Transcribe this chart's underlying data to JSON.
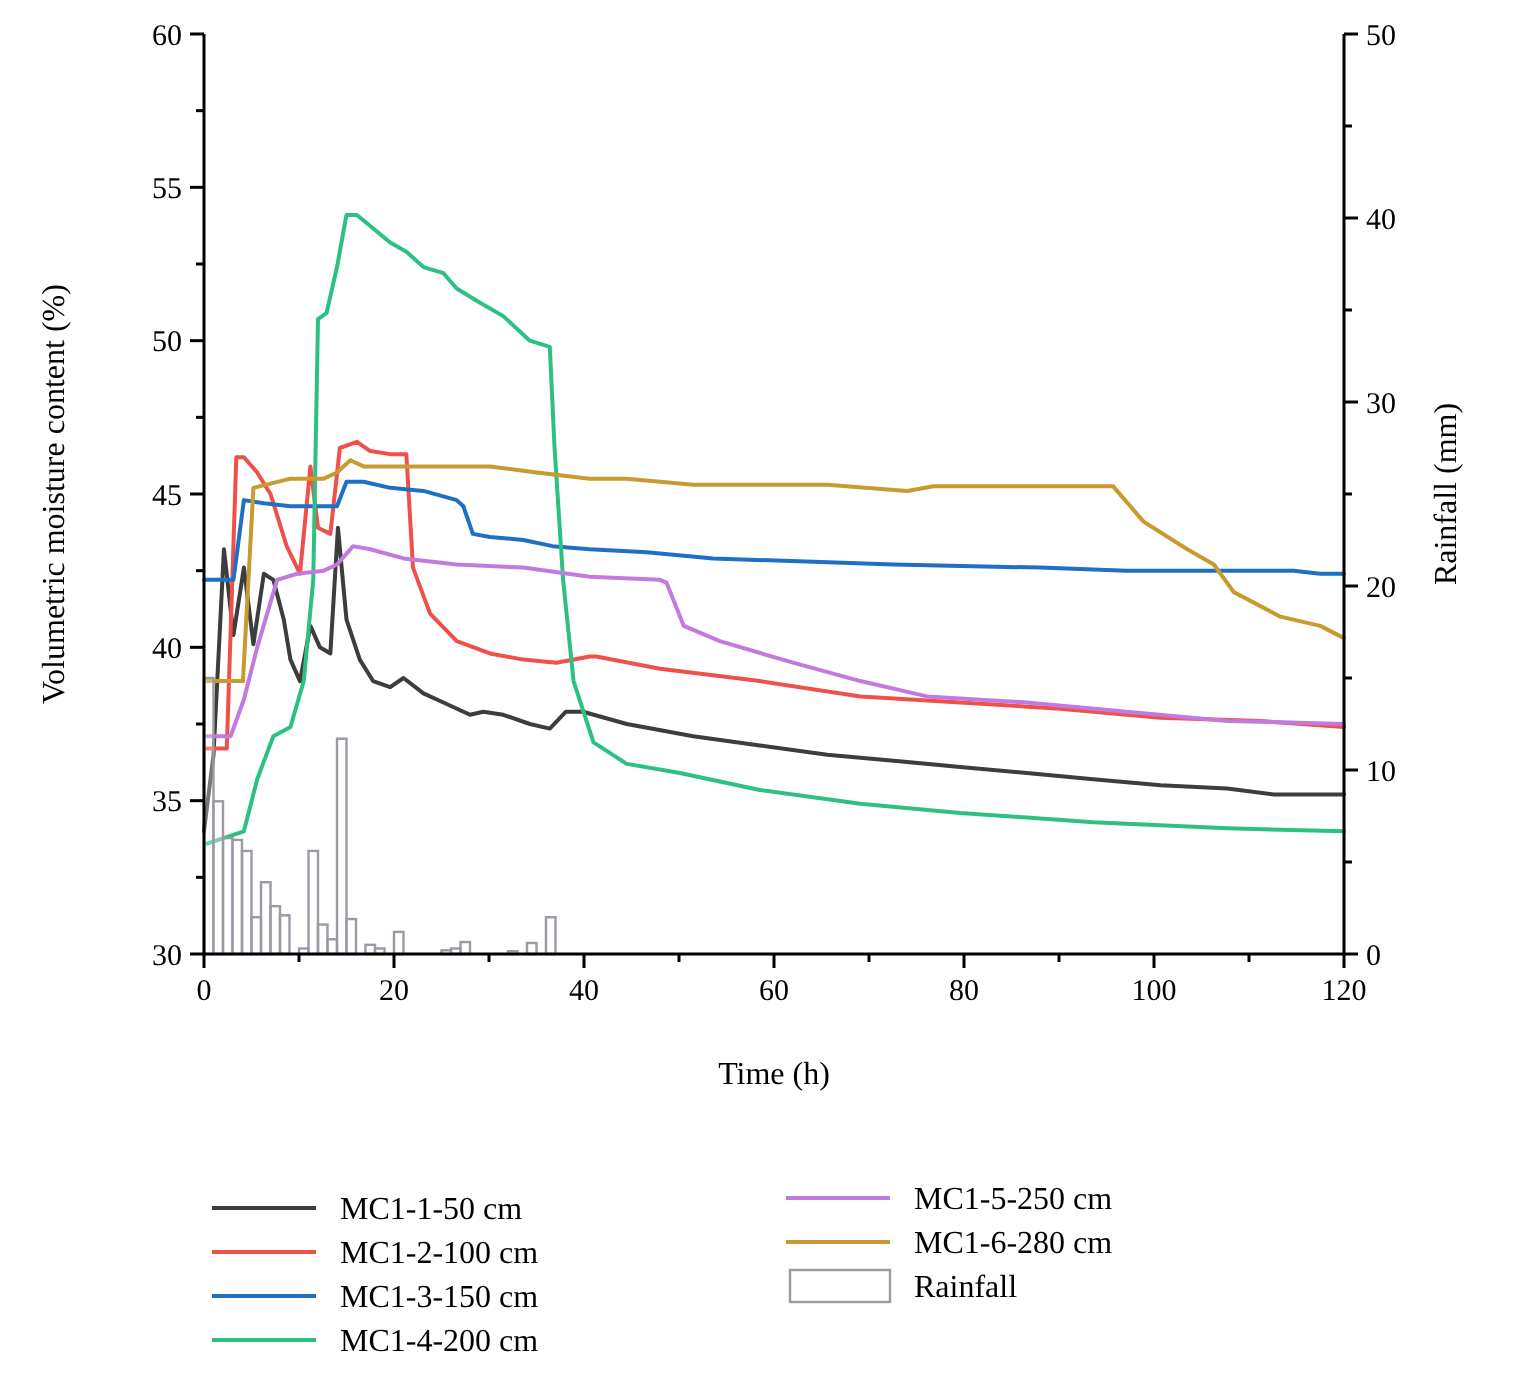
{
  "chart_data": {
    "type": "line",
    "xlabel": "Time (h)",
    "ylabel": "Volumetric moisture content (%)",
    "y2label": "Rainfall (mm)",
    "xlim": [
      0,
      120
    ],
    "xticks": [
      0,
      {
        "value": 10,
        "label": null
      },
      20,
      {
        "value": 30,
        "label": null
      },
      40,
      {
        "value": 50,
        "label": null
      },
      60,
      {
        "value": 70,
        "label": null
      },
      80,
      {
        "value": 90,
        "label": null
      },
      100,
      {
        "value": 110,
        "label": null
      },
      120
    ],
    "ylim": [
      30,
      60
    ],
    "yticks": [
      30,
      {
        "value": 32.5,
        "label": null
      },
      35,
      {
        "value": 37.5,
        "label": null
      },
      40,
      {
        "value": 42.5,
        "label": null
      },
      45,
      {
        "value": 47.5,
        "label": null
      },
      50,
      {
        "value": 52.5,
        "label": null
      },
      55,
      {
        "value": 57.5,
        "label": null
      },
      60
    ],
    "y2lim": [
      0,
      50
    ],
    "y2ticks": [
      0,
      {
        "value": 5,
        "label": null
      },
      10,
      {
        "value": 15,
        "label": null
      },
      20,
      {
        "value": 25,
        "label": null
      },
      30,
      {
        "value": 35,
        "label": null
      },
      40,
      {
        "value": 45,
        "label": null
      },
      50
    ],
    "grid": false,
    "legend": "bottom",
    "marker": "none",
    "line_style": "solid",
    "series": [
      {
        "name": "MC1-1-50 cm",
        "color": "#3d3d3d",
        "x": [
          0,
          1,
          2.1,
          3.1,
          4.2,
          5.2,
          6.3,
          7.3,
          8.4,
          9.1,
          10.1,
          11.2,
          12.2,
          13.3,
          14.1,
          15,
          16.4,
          17.8,
          19.6,
          21,
          23.1,
          25.2,
          28,
          29.4,
          31.5,
          34.3,
          36.4,
          38.1,
          39.9,
          44.5,
          51.5,
          58.5,
          65.6,
          72.6,
          79.6,
          86.6,
          93.6,
          100.7,
          107.7,
          112.6,
          117.5,
          120
        ],
        "values": [
          34,
          36.5,
          43.2,
          40.4,
          42.6,
          40.1,
          42.4,
          42.2,
          40.9,
          39.6,
          38.9,
          40.7,
          40,
          39.8,
          43.9,
          40.9,
          39.6,
          38.9,
          38.7,
          39,
          38.5,
          38.2,
          37.8,
          37.9,
          37.8,
          37.5,
          37.35,
          37.9,
          37.9,
          37.5,
          37.1,
          36.8,
          36.5,
          36.3,
          36.1,
          35.9,
          35.7,
          35.5,
          35.4,
          35.2,
          35.2,
          35.2
        ]
      },
      {
        "name": "MC1-2-100 cm",
        "color": "#f0504a",
        "x": [
          0.3,
          2.4,
          3.4,
          4.2,
          5.6,
          7,
          8.7,
          10.1,
          11.2,
          12,
          13.3,
          14.3,
          16.1,
          17.5,
          19.6,
          21.3,
          22,
          23.8,
          26.6,
          30.1,
          33.6,
          37.1,
          40.6,
          41.3,
          48,
          58.5,
          69.1,
          79.6,
          90.1,
          100.7,
          111.2,
          120
        ],
        "values": [
          36.7,
          36.7,
          46.2,
          46.2,
          45.7,
          45,
          43.3,
          42.4,
          45.9,
          43.9,
          43.7,
          46.5,
          46.7,
          46.4,
          46.3,
          46.3,
          42.6,
          41.1,
          40.2,
          39.8,
          39.6,
          39.5,
          39.7,
          39.7,
          39.3,
          38.9,
          38.4,
          38.2,
          38,
          37.7,
          37.6,
          37.4
        ]
      },
      {
        "name": "MC1-3-150 cm",
        "color": "#1f6fc5",
        "x": [
          0,
          3.1,
          4.2,
          6.3,
          9.1,
          12.6,
          14,
          15,
          16.8,
          19.6,
          23.1,
          26.6,
          27.3,
          28.3,
          30.1,
          33.6,
          36.7,
          40.6,
          46.6,
          53.6,
          72.6,
          88,
          97.1,
          114.7,
          117.5,
          120
        ],
        "values": [
          42.2,
          42.2,
          44.8,
          44.7,
          44.6,
          44.6,
          44.6,
          45.4,
          45.4,
          45.2,
          45.1,
          44.8,
          44.6,
          43.7,
          43.6,
          43.5,
          43.3,
          43.2,
          43.1,
          42.9,
          42.7,
          42.6,
          42.5,
          42.5,
          42.4,
          42.4
        ]
      },
      {
        "name": "MC1-4-200 cm",
        "color": "#2cc182",
        "x": [
          0.3,
          4.2,
          5.6,
          7.3,
          9.1,
          10.5,
          11.5,
          12,
          12.9,
          14,
          15,
          16.1,
          19.6,
          21.3,
          23.1,
          25.2,
          26.6,
          28.7,
          31.5,
          34.3,
          36.4,
          36.9,
          37.8,
          38.9,
          41,
          44.5,
          50.1,
          58.5,
          69.1,
          79.6,
          93.6,
          107.7,
          120
        ],
        "values": [
          33.6,
          34,
          35.7,
          37.1,
          37.4,
          38.9,
          42.2,
          50.7,
          50.9,
          52.4,
          54.1,
          54.1,
          53.2,
          52.9,
          52.4,
          52.2,
          51.7,
          51.3,
          50.8,
          50,
          49.8,
          46.5,
          42.2,
          38.9,
          36.9,
          36.2,
          35.9,
          35.35,
          34.9,
          34.6,
          34.3,
          34.1,
          34
        ]
      },
      {
        "name": "MC1-5-250 cm",
        "color": "#c07ae0",
        "x": [
          0.3,
          2.8,
          4.2,
          5.6,
          7.7,
          9.8,
          12.6,
          14,
          15.7,
          17.5,
          21,
          26.6,
          33.6,
          40.6,
          48,
          48.7,
          50.5,
          54.3,
          62,
          69.1,
          76.1,
          86.6,
          97.1,
          107.7,
          120
        ],
        "values": [
          37.1,
          37.1,
          38.3,
          40,
          42.2,
          42.4,
          42.5,
          42.7,
          43.3,
          43.2,
          42.9,
          42.7,
          42.6,
          42.3,
          42.2,
          42.1,
          40.7,
          40.2,
          39.5,
          38.9,
          38.4,
          38.2,
          37.9,
          37.6,
          37.5
        ]
      },
      {
        "name": "MC1-6-280 cm",
        "color": "#c99a2e",
        "x": [
          0.3,
          4.1,
          5.2,
          9.1,
          12.6,
          14,
          15.4,
          16.8,
          19.6,
          23.1,
          30.1,
          35,
          40.6,
          44.5,
          51.5,
          65.6,
          74,
          76.8,
          95.7,
          98.9,
          103.5,
          106.3,
          108.4,
          113.3,
          117.5,
          120
        ],
        "values": [
          38.9,
          38.9,
          45.2,
          45.5,
          45.5,
          45.7,
          46.1,
          45.9,
          45.9,
          45.9,
          45.9,
          45.7,
          45.5,
          45.5,
          45.3,
          45.3,
          45.1,
          45.25,
          45.25,
          44.1,
          43.2,
          42.7,
          41.8,
          41,
          40.7,
          40.3
        ]
      },
      {
        "name": "Rainfall",
        "type": "bar",
        "axis": "y2",
        "color": "#9a9aa6",
        "x": [
          0.5,
          1.5,
          2.5,
          3.5,
          4.5,
          5.5,
          6.5,
          7.5,
          8.5,
          10.5,
          11.5,
          12.5,
          13.5,
          14.5,
          15.5,
          17.5,
          18.5,
          20.5,
          25.5,
          26.5,
          27.5,
          32.5,
          34.5,
          36.5
        ],
        "values": [
          15,
          8.3,
          6.3,
          6.2,
          5.6,
          2,
          3.9,
          2.6,
          2.1,
          0.3,
          5.6,
          1.6,
          0.8,
          11.7,
          1.9,
          0.5,
          0.3,
          1.2,
          0.2,
          0.3,
          0.65,
          0.15,
          0.6,
          2
        ]
      }
    ]
  }
}
